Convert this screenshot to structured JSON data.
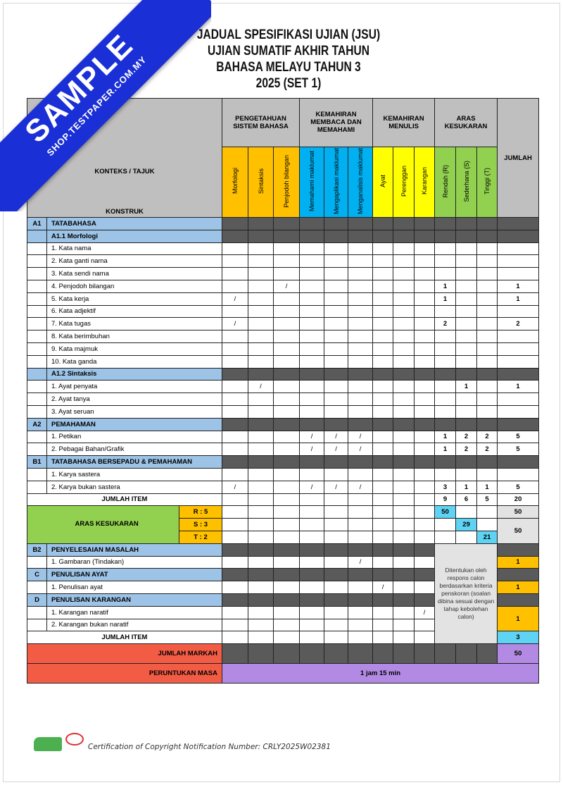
{
  "watermark": {
    "main": "SAMPLE",
    "site": "SHOP.TESTPAPER.COM.MY",
    "color": "#1a2fd6"
  },
  "title": [
    "JADUAL SPESIFIKASI UJIAN (JSU)",
    "UJIAN SUMATIF AKHIR TAHUN",
    "BAHASA MELAYU TAHUN 3",
    "2025 (SET 1)"
  ],
  "header": {
    "konteks": "KONTEKS / TAJUK",
    "konstruk": "KONSTRUK",
    "groups": [
      "PENGETAHUAN SISTEM BAHASA",
      "KEMAHIRAN MEMBACA DAN MEMAHAMI",
      "KEMAHIRAN MENULIS",
      "ARAS KESUKARAN"
    ],
    "jumlah": "JUMLAH",
    "columns": [
      "Morfologi",
      "Sintaksis",
      "Penjodoh bilangan",
      "Memahami maklumat",
      "Mengaplikasi maklumat",
      "Menganalisis maklumat",
      "Ayat",
      "Perenggan",
      "Karangan",
      "Rendah (R)",
      "Sederhana (S)",
      "Tinggi (T)"
    ]
  },
  "colors": {
    "sistem_bahasa": "#ffc000",
    "membaca": "#00b0f0",
    "menulis": "#ffff00",
    "aras": "#92d050",
    "section": "#9dc3e6",
    "markah": "#f25c45",
    "masa": "#b28ae3"
  },
  "rows": [
    {
      "type": "section",
      "code": "A1",
      "label": "TATABAHASA"
    },
    {
      "type": "sub",
      "label": "A1.1 Morfologi"
    },
    {
      "type": "item",
      "label": "1. Kata nama",
      "cells": [
        "",
        "",
        "",
        "",
        "",
        "",
        "",
        "",
        "",
        "",
        "",
        "",
        ""
      ]
    },
    {
      "type": "item",
      "label": "2. Kata ganti nama",
      "cells": [
        "",
        "",
        "",
        "",
        "",
        "",
        "",
        "",
        "",
        "",
        "",
        "",
        ""
      ]
    },
    {
      "type": "item",
      "label": "3. Kata sendi nama",
      "cells": [
        "",
        "",
        "",
        "",
        "",
        "",
        "",
        "",
        "",
        "",
        "",
        "",
        ""
      ]
    },
    {
      "type": "item",
      "label": "4. Penjodoh bilangan",
      "cells": [
        "",
        "",
        "/",
        "",
        "",
        "",
        "",
        "",
        "",
        "1",
        "",
        "",
        "1"
      ]
    },
    {
      "type": "item",
      "label": "5. Kata kerja",
      "cells": [
        "/",
        "",
        "",
        "",
        "",
        "",
        "",
        "",
        "",
        "1",
        "",
        "",
        "1"
      ]
    },
    {
      "type": "item",
      "label": "6. Kata adjektif",
      "cells": [
        "",
        "",
        "",
        "",
        "",
        "",
        "",
        "",
        "",
        "",
        "",
        "",
        ""
      ]
    },
    {
      "type": "item",
      "label": "7. Kata tugas",
      "cells": [
        "/",
        "",
        "",
        "",
        "",
        "",
        "",
        "",
        "",
        "2",
        "",
        "",
        "2"
      ]
    },
    {
      "type": "item",
      "label": "8. Kata berimbuhan",
      "cells": [
        "",
        "",
        "",
        "",
        "",
        "",
        "",
        "",
        "",
        "",
        "",
        "",
        ""
      ]
    },
    {
      "type": "item",
      "label": "9. Kata majmuk",
      "cells": [
        "",
        "",
        "",
        "",
        "",
        "",
        "",
        "",
        "",
        "",
        "",
        "",
        ""
      ]
    },
    {
      "type": "item",
      "label": "10. Kata ganda",
      "cells": [
        "",
        "",
        "",
        "",
        "",
        "",
        "",
        "",
        "",
        "",
        "",
        "",
        ""
      ]
    },
    {
      "type": "sub",
      "label": "A1.2 Sintaksis"
    },
    {
      "type": "item",
      "label": "1. Ayat penyata",
      "cells": [
        "",
        "/",
        "",
        "",
        "",
        "",
        "",
        "",
        "",
        "",
        "1",
        "",
        "1"
      ]
    },
    {
      "type": "item",
      "label": "2. Ayat tanya",
      "cells": [
        "",
        "",
        "",
        "",
        "",
        "",
        "",
        "",
        "",
        "",
        "",
        "",
        ""
      ]
    },
    {
      "type": "item",
      "label": "3. Ayat seruan",
      "cells": [
        "",
        "",
        "",
        "",
        "",
        "",
        "",
        "",
        "",
        "",
        "",
        "",
        ""
      ]
    },
    {
      "type": "section",
      "code": "A2",
      "label": "PEMAHAMAN"
    },
    {
      "type": "item",
      "label": "1. Petikan",
      "cells": [
        "",
        "",
        "",
        "/",
        "/",
        "/",
        "",
        "",
        "",
        "1",
        "2",
        "2",
        "5"
      ]
    },
    {
      "type": "item",
      "label": "2. Pebagai Bahan/Grafik",
      "cells": [
        "",
        "",
        "",
        "/",
        "/",
        "/",
        "",
        "",
        "",
        "1",
        "2",
        "2",
        "5"
      ]
    },
    {
      "type": "section",
      "code": "B1",
      "label": "TATABAHASA BERSEPADU  & PEMAHAMAN"
    },
    {
      "type": "item",
      "label": "1. Karya sastera",
      "cells": [
        "",
        "",
        "",
        "",
        "",
        "",
        "",
        "",
        "",
        "",
        "",
        "",
        ""
      ]
    },
    {
      "type": "item",
      "label": "2. Karya bukan sastera",
      "cells": [
        "/",
        "",
        "",
        "/",
        "/",
        "/",
        "",
        "",
        "",
        "3",
        "1",
        "1",
        "5"
      ]
    }
  ],
  "jumlah_item_1": {
    "label": "JUMLAH ITEM",
    "r": "9",
    "s": "6",
    "t": "5",
    "total": "20"
  },
  "aras": {
    "label": "ARAS KESUKARAN",
    "r_label": "R : 5",
    "s_label": "S : 3",
    "t_label": "T : 2",
    "r_val": "50",
    "s_val": "29",
    "t_val": "21",
    "r_total": "50",
    "st_total": "50"
  },
  "part2": {
    "b2": {
      "code": "B2",
      "label": "PENYELESAIAN MASALAH",
      "item": "1. Gambaran (Tindakan)",
      "mark": "/",
      "total": "1"
    },
    "c": {
      "code": "C",
      "label": "PENULISAN AYAT",
      "item": "1. Penulisan ayat",
      "mark": "/",
      "total": "1"
    },
    "d": {
      "code": "D",
      "label": "PENULISAN KARANGAN",
      "item1": "1. Karangan naratif",
      "item2": "2. Karangan bukan naratif",
      "mark": "/",
      "total": "1"
    },
    "note": "Ditentukan oleh respons calon berdasarkan kriteria penskoran (soalan dibina sesuai dengan tahap kebolehan calon)",
    "jumlah_item": {
      "label": "JUMLAH ITEM",
      "total": "3"
    }
  },
  "jumlah_markah": {
    "label": "JUMLAH MARKAH",
    "total": "50"
  },
  "peruntukan_masa": {
    "label": "PERUNTUKAN MASA",
    "value": "1 jam 15 min"
  },
  "footer": {
    "certification": "Certification of Copyright Notification Number: CRLY2025W02381"
  }
}
